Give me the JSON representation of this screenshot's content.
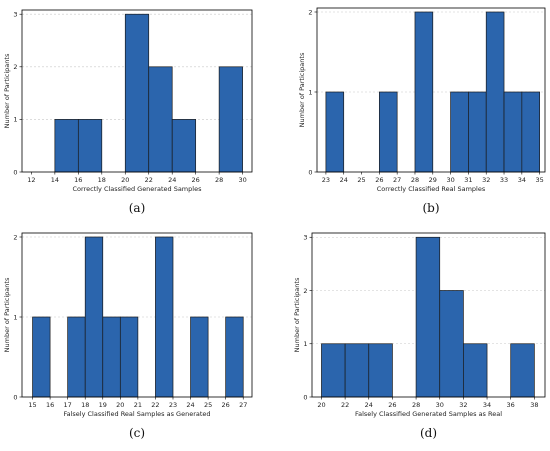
{
  "colors": {
    "bar": "#2b65ad"
  },
  "chart_data": [
    {
      "type": "bar",
      "panel": "(a)",
      "xlabel": "Correctly Classified Generated Samples",
      "ylabel": "Number of Participants",
      "xlim": [
        11.2,
        30.8
      ],
      "ylim": [
        0,
        3.08
      ],
      "xticks": [
        12,
        14,
        16,
        18,
        20,
        22,
        24,
        26,
        28,
        30
      ],
      "yticks": [
        0,
        1,
        2,
        3
      ],
      "bins": [
        {
          "x0": 14,
          "x1": 16,
          "value": 1
        },
        {
          "x0": 16,
          "x1": 18,
          "value": 1
        },
        {
          "x0": 20,
          "x1": 22,
          "value": 3
        },
        {
          "x0": 22,
          "x1": 24,
          "value": 2
        },
        {
          "x0": 24,
          "x1": 26,
          "value": 1
        },
        {
          "x0": 28,
          "x1": 30,
          "value": 2
        }
      ],
      "grid": "y"
    },
    {
      "type": "bar",
      "panel": "(b)",
      "xlabel": "Correctly Classified Real Samples",
      "ylabel": "Number of Participants",
      "xlim": [
        22.5,
        35.3
      ],
      "ylim": [
        0,
        2.05
      ],
      "xticks": [
        23,
        24,
        25,
        26,
        27,
        28,
        29,
        30,
        31,
        32,
        33,
        34,
        35
      ],
      "yticks": [
        0,
        1,
        2
      ],
      "bins": [
        {
          "x0": 23,
          "x1": 24,
          "value": 1
        },
        {
          "x0": 26,
          "x1": 27,
          "value": 1
        },
        {
          "x0": 28,
          "x1": 29,
          "value": 2
        },
        {
          "x0": 30,
          "x1": 31,
          "value": 1
        },
        {
          "x0": 31,
          "x1": 32,
          "value": 1
        },
        {
          "x0": 32,
          "x1": 33,
          "value": 2
        },
        {
          "x0": 33,
          "x1": 34,
          "value": 1
        },
        {
          "x0": 34,
          "x1": 35,
          "value": 1
        }
      ],
      "grid": "y"
    },
    {
      "type": "bar",
      "panel": "(c)",
      "xlabel": "Falsely Classified Real Samples as Generated",
      "ylabel": "Number of Participants",
      "xlim": [
        14.4,
        27.5
      ],
      "ylim": [
        0,
        2.05
      ],
      "xticks": [
        15,
        16,
        17,
        18,
        19,
        20,
        21,
        22,
        23,
        24,
        25,
        26,
        27
      ],
      "yticks": [
        0,
        1,
        2
      ],
      "bins": [
        {
          "x0": 15,
          "x1": 16,
          "value": 1
        },
        {
          "x0": 17,
          "x1": 18,
          "value": 1
        },
        {
          "x0": 18,
          "x1": 19,
          "value": 2
        },
        {
          "x0": 19,
          "x1": 20,
          "value": 1
        },
        {
          "x0": 20,
          "x1": 21,
          "value": 1
        },
        {
          "x0": 22,
          "x1": 23,
          "value": 2
        },
        {
          "x0": 24,
          "x1": 25,
          "value": 1
        },
        {
          "x0": 26,
          "x1": 27,
          "value": 1
        }
      ],
      "grid": "y"
    },
    {
      "type": "bar",
      "panel": "(d)",
      "xlabel": "Falsely Classified Generated Samples as Real",
      "ylabel": "Number of Participants",
      "xlim": [
        19.2,
        38.9
      ],
      "ylim": [
        0,
        3.08
      ],
      "xticks": [
        20,
        22,
        24,
        26,
        28,
        30,
        32,
        34,
        36,
        38
      ],
      "yticks": [
        0,
        1,
        2,
        3
      ],
      "bins": [
        {
          "x0": 20,
          "x1": 22,
          "value": 1
        },
        {
          "x0": 22,
          "x1": 24,
          "value": 1
        },
        {
          "x0": 24,
          "x1": 26,
          "value": 1
        },
        {
          "x0": 28,
          "x1": 30,
          "value": 3
        },
        {
          "x0": 30,
          "x1": 32,
          "value": 2
        },
        {
          "x0": 32,
          "x1": 34,
          "value": 1
        },
        {
          "x0": 36,
          "x1": 38,
          "value": 1
        }
      ],
      "grid": "y"
    }
  ]
}
